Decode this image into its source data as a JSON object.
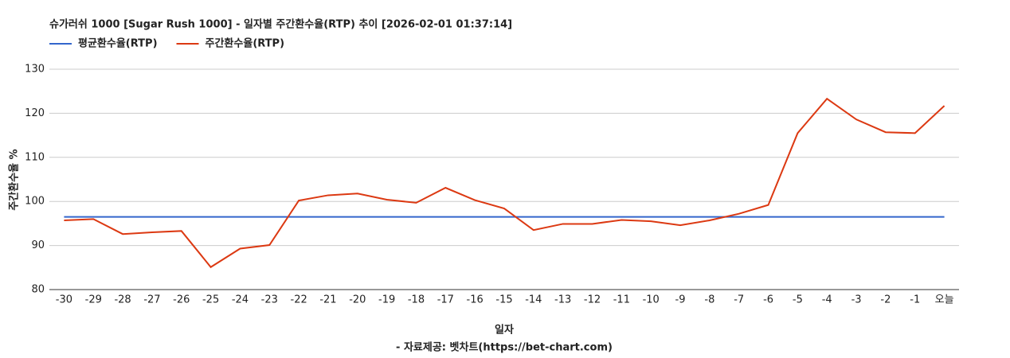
{
  "chart_data": {
    "type": "line",
    "title": "슈가러쉬 1000 [Sugar Rush 1000] - 일자별 주간환수율(RTP) 추이 [2026-02-01 01:37:14]",
    "x_label": "일자",
    "y_label": "주간환수율 %",
    "source": "- 자료제공: 벳차트(https://bet-chart.com)",
    "categories": [
      "-30",
      "-29",
      "-28",
      "-27",
      "-26",
      "-25",
      "-24",
      "-23",
      "-22",
      "-21",
      "-20",
      "-19",
      "-18",
      "-17",
      "-16",
      "-15",
      "-14",
      "-13",
      "-12",
      "-11",
      "-10",
      "-9",
      "-8",
      "-7",
      "-6",
      "-5",
      "-4",
      "-3",
      "-2",
      "-1",
      "오늘"
    ],
    "series": [
      {
        "name": "평균환수율(RTP)",
        "color": "#3366cc",
        "values": [
          96.5,
          96.5,
          96.5,
          96.5,
          96.5,
          96.5,
          96.5,
          96.5,
          96.5,
          96.5,
          96.5,
          96.5,
          96.5,
          96.5,
          96.5,
          96.5,
          96.5,
          96.5,
          96.5,
          96.5,
          96.5,
          96.5,
          96.5,
          96.5,
          96.5,
          96.5,
          96.5,
          96.5,
          96.5,
          96.5,
          96.5
        ]
      },
      {
        "name": "주간환수율(RTP)",
        "color": "#dc3912",
        "values": [
          95.7,
          96.0,
          92.6,
          93.0,
          93.3,
          85.1,
          89.3,
          90.1,
          100.2,
          101.4,
          101.8,
          100.4,
          99.7,
          103.1,
          100.3,
          98.4,
          93.5,
          94.9,
          94.9,
          95.8,
          95.5,
          94.6,
          95.7,
          97.2,
          99.2,
          115.5,
          123.3,
          118.6,
          115.7,
          115.5,
          121.7
        ]
      }
    ],
    "ylim": [
      80,
      130
    ],
    "yticks": [
      80,
      90,
      100,
      110,
      120,
      130
    ],
    "grid": true,
    "legend": "top-left"
  }
}
